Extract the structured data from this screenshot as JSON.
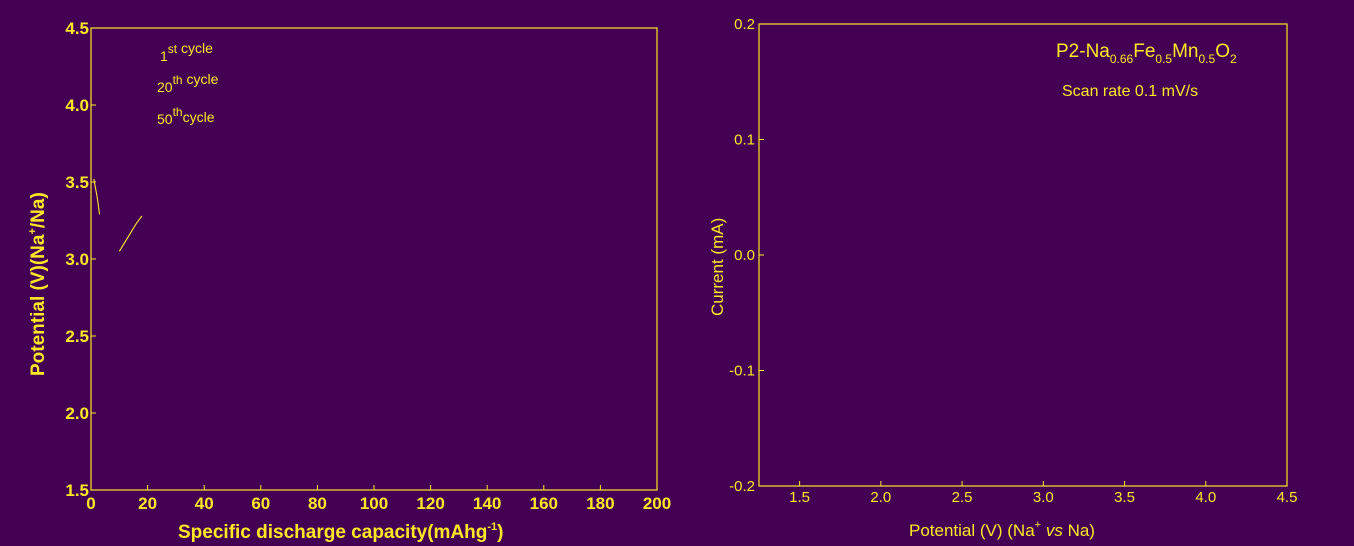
{
  "colors": {
    "background": "#440154",
    "foreground": "#fde725"
  },
  "chart_data": [
    {
      "type": "line",
      "title": "",
      "xlabel": "Specific discharge capacity(mAhg",
      "xlabel_sup": "-1",
      "xlabel_close": ")",
      "ylabel_pre": "Potential (V)(Na",
      "ylabel_sup": "+",
      "ylabel_post": "/Na)",
      "xlim": [
        0,
        200
      ],
      "ylim": [
        1.5,
        4.5
      ],
      "xticks": [
        "0",
        "20",
        "40",
        "60",
        "80",
        "100",
        "120",
        "140",
        "160",
        "180",
        "200"
      ],
      "yticks": [
        "1.5",
        "2.0",
        "2.5",
        "3.0",
        "3.5",
        "4.0",
        "4.5"
      ],
      "grid": false,
      "legend_position": "top-left",
      "legend": [
        {
          "pre": "1",
          "sup": "st",
          "post": " cycle"
        },
        {
          "pre": "20",
          "sup": "th",
          "post": " cycle"
        },
        {
          "pre": "50",
          "sup": "th",
          "post": "cycle"
        }
      ],
      "series": [
        {
          "x": [
            1,
            1.5,
            2,
            2.5,
            3
          ],
          "y": [
            3.52,
            3.47,
            3.42,
            3.36,
            3.29
          ]
        },
        {
          "x": [
            10,
            12,
            14,
            16,
            18
          ],
          "y": [
            3.05,
            3.11,
            3.17,
            3.23,
            3.28
          ]
        }
      ]
    },
    {
      "type": "line",
      "title": "",
      "annotation_main": "P2-Na",
      "annotation_sub1": "0.66",
      "annotation_mid1": "Fe",
      "annotation_sub2": "0.5",
      "annotation_mid2": "Mn",
      "annotation_sub3": "0.5",
      "annotation_end": "O",
      "annotation_sub4": "2",
      "annotation_rate": "Scan rate 0.1 mV/s",
      "xlabel_pre": "Potential (V) (Na",
      "xlabel_sup": "+",
      "xlabel_italic": "vs",
      "xlabel_post": "Na)",
      "ylabel": "Current (mA)",
      "xlim": [
        1.25,
        4.5
      ],
      "ylim": [
        -0.2,
        0.2
      ],
      "xticks": [
        "1.5",
        "2.0",
        "2.5",
        "3.0",
        "3.5",
        "4.0",
        "4.5"
      ],
      "yticks": [
        "-0.2",
        "-0.1",
        "0.0",
        "0.1",
        "0.2"
      ],
      "grid": false,
      "series": []
    }
  ]
}
